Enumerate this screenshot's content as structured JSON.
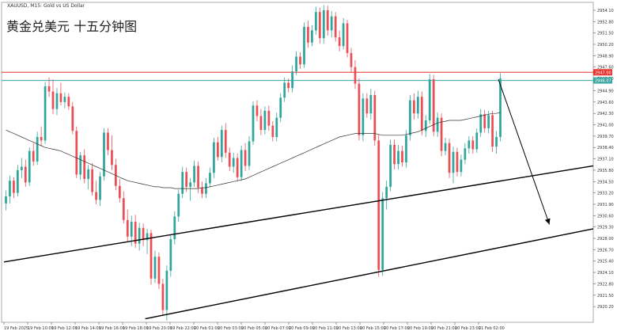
{
  "header": {
    "symbol_line": "XAUUSD, M15:  Gold vs US Dollar",
    "overlay_title": "黄金兑美元 十五分钟图"
  },
  "chart_data": {
    "type": "candlestick",
    "title": "黄金兑美元 十五分钟图",
    "ylim": [
      2918.4,
      2955.0
    ],
    "y_ticks": [
      "2954.10",
      "2952.80",
      "2951.50",
      "2950.20",
      "2948.90",
      "2947.60",
      "2946.30",
      "2944.90",
      "2943.60",
      "2942.30",
      "2941.00",
      "2939.70",
      "2938.40",
      "2937.10",
      "2935.80",
      "2934.50",
      "2933.20",
      "2931.90",
      "2930.60",
      "2929.30",
      "2928.00",
      "2926.70",
      "2925.40",
      "2924.10",
      "2922.80",
      "2921.50",
      "2920.20"
    ],
    "x_ticks": [
      "19 Feb 2025",
      "19 Feb 10:00",
      "19 Feb 12:00",
      "19 Feb 14:00",
      "19 Feb 16:00",
      "19 Feb 18:00",
      "19 Feb 20:00",
      "19 Feb 22:00",
      "20 Feb 01:00",
      "20 Feb 03:00",
      "20 Feb 05:00",
      "20 Feb 07:00",
      "20 Feb 09:00",
      "20 Feb 11:00",
      "20 Feb 13:00",
      "20 Feb 15:00",
      "20 Feb 17:00",
      "20 Feb 19:00",
      "20 Feb 21:00",
      "20 Feb 23:00",
      "21 Feb 02:00"
    ],
    "candles": [
      {
        "o": 2932.0,
        "h": 2933.5,
        "l": 2931.2,
        "c": 2932.8
      },
      {
        "o": 2932.8,
        "h": 2935.2,
        "l": 2932.0,
        "c": 2934.6
      },
      {
        "o": 2934.6,
        "h": 2935.0,
        "l": 2932.6,
        "c": 2933.2
      },
      {
        "o": 2933.2,
        "h": 2936.4,
        "l": 2932.8,
        "c": 2935.8
      },
      {
        "o": 2935.8,
        "h": 2937.2,
        "l": 2934.9,
        "c": 2936.2
      },
      {
        "o": 2936.2,
        "h": 2937.0,
        "l": 2933.9,
        "c": 2934.4
      },
      {
        "o": 2934.4,
        "h": 2938.4,
        "l": 2934.0,
        "c": 2938.0
      },
      {
        "o": 2938.0,
        "h": 2938.9,
        "l": 2936.3,
        "c": 2936.8
      },
      {
        "o": 2936.8,
        "h": 2940.2,
        "l": 2936.4,
        "c": 2939.6
      },
      {
        "o": 2939.6,
        "h": 2940.8,
        "l": 2938.6,
        "c": 2939.2
      },
      {
        "o": 2939.2,
        "h": 2945.9,
        "l": 2938.8,
        "c": 2945.4
      },
      {
        "o": 2945.4,
        "h": 2946.4,
        "l": 2944.2,
        "c": 2944.8
      },
      {
        "o": 2944.8,
        "h": 2946.2,
        "l": 2942.2,
        "c": 2942.8
      },
      {
        "o": 2942.8,
        "h": 2945.2,
        "l": 2942.1,
        "c": 2944.6
      },
      {
        "o": 2944.6,
        "h": 2945.8,
        "l": 2943.2,
        "c": 2943.6
      },
      {
        "o": 2943.6,
        "h": 2944.7,
        "l": 2942.9,
        "c": 2944.2
      },
      {
        "o": 2944.2,
        "h": 2944.6,
        "l": 2942.7,
        "c": 2943.1
      },
      {
        "o": 2943.1,
        "h": 2943.6,
        "l": 2939.9,
        "c": 2940.3
      },
      {
        "o": 2940.3,
        "h": 2940.8,
        "l": 2934.9,
        "c": 2935.3
      },
      {
        "o": 2935.3,
        "h": 2937.9,
        "l": 2934.7,
        "c": 2937.5
      },
      {
        "o": 2937.5,
        "h": 2938.2,
        "l": 2934.3,
        "c": 2934.8
      },
      {
        "o": 2934.8,
        "h": 2936.4,
        "l": 2933.6,
        "c": 2935.9
      },
      {
        "o": 2935.9,
        "h": 2936.6,
        "l": 2932.9,
        "c": 2933.3
      },
      {
        "o": 2933.3,
        "h": 2934.6,
        "l": 2931.9,
        "c": 2932.4
      },
      {
        "o": 2932.4,
        "h": 2935.6,
        "l": 2931.7,
        "c": 2935.1
      },
      {
        "o": 2935.1,
        "h": 2940.6,
        "l": 2934.6,
        "c": 2940.1
      },
      {
        "o": 2940.1,
        "h": 2940.6,
        "l": 2937.5,
        "c": 2938.1
      },
      {
        "o": 2938.1,
        "h": 2939.8,
        "l": 2935.8,
        "c": 2936.4
      },
      {
        "o": 2936.4,
        "h": 2937.1,
        "l": 2933.5,
        "c": 2934.0
      },
      {
        "o": 2934.0,
        "h": 2934.8,
        "l": 2932.1,
        "c": 2932.6
      },
      {
        "o": 2932.6,
        "h": 2933.4,
        "l": 2929.7,
        "c": 2930.1
      },
      {
        "o": 2930.1,
        "h": 2931.3,
        "l": 2927.6,
        "c": 2928.2
      },
      {
        "o": 2928.2,
        "h": 2930.6,
        "l": 2927.1,
        "c": 2929.9
      },
      {
        "o": 2929.9,
        "h": 2930.7,
        "l": 2926.9,
        "c": 2927.4
      },
      {
        "o": 2927.4,
        "h": 2929.8,
        "l": 2926.6,
        "c": 2929.2
      },
      {
        "o": 2929.2,
        "h": 2929.7,
        "l": 2927.1,
        "c": 2927.8
      },
      {
        "o": 2927.8,
        "h": 2929.1,
        "l": 2926.2,
        "c": 2928.6
      },
      {
        "o": 2928.6,
        "h": 2929.0,
        "l": 2922.7,
        "c": 2923.4
      },
      {
        "o": 2923.4,
        "h": 2926.6,
        "l": 2922.9,
        "c": 2925.9
      },
      {
        "o": 2925.9,
        "h": 2926.4,
        "l": 2922.2,
        "c": 2922.8
      },
      {
        "o": 2922.8,
        "h": 2923.4,
        "l": 2919.2,
        "c": 2919.8
      },
      {
        "o": 2919.8,
        "h": 2924.9,
        "l": 2918.6,
        "c": 2924.3
      },
      {
        "o": 2924.3,
        "h": 2928.4,
        "l": 2923.6,
        "c": 2927.9
      },
      {
        "o": 2927.9,
        "h": 2931.1,
        "l": 2927.3,
        "c": 2930.5
      },
      {
        "o": 2930.5,
        "h": 2933.6,
        "l": 2929.9,
        "c": 2933.1
      },
      {
        "o": 2933.1,
        "h": 2936.2,
        "l": 2932.6,
        "c": 2935.6
      },
      {
        "o": 2935.6,
        "h": 2936.1,
        "l": 2933.3,
        "c": 2933.9
      },
      {
        "o": 2933.9,
        "h": 2934.9,
        "l": 2932.3,
        "c": 2934.4
      },
      {
        "o": 2934.4,
        "h": 2936.9,
        "l": 2933.9,
        "c": 2936.3
      },
      {
        "o": 2936.3,
        "h": 2936.8,
        "l": 2933.2,
        "c": 2933.8
      },
      {
        "o": 2933.8,
        "h": 2934.5,
        "l": 2932.6,
        "c": 2933.1
      },
      {
        "o": 2933.1,
        "h": 2934.9,
        "l": 2932.6,
        "c": 2934.3
      },
      {
        "o": 2934.3,
        "h": 2936.1,
        "l": 2933.9,
        "c": 2935.5
      },
      {
        "o": 2935.5,
        "h": 2939.5,
        "l": 2934.9,
        "c": 2939.0
      },
      {
        "o": 2939.0,
        "h": 2939.6,
        "l": 2936.9,
        "c": 2937.3
      },
      {
        "o": 2937.3,
        "h": 2940.9,
        "l": 2936.7,
        "c": 2940.4
      },
      {
        "o": 2940.4,
        "h": 2941.2,
        "l": 2937.2,
        "c": 2937.8
      },
      {
        "o": 2937.8,
        "h": 2938.4,
        "l": 2935.7,
        "c": 2936.2
      },
      {
        "o": 2936.2,
        "h": 2937.8,
        "l": 2935.5,
        "c": 2937.2
      },
      {
        "o": 2937.2,
        "h": 2937.7,
        "l": 2934.5,
        "c": 2935.0
      },
      {
        "o": 2935.0,
        "h": 2938.6,
        "l": 2934.6,
        "c": 2938.1
      },
      {
        "o": 2938.1,
        "h": 2938.9,
        "l": 2935.7,
        "c": 2936.3
      },
      {
        "o": 2936.3,
        "h": 2939.7,
        "l": 2935.8,
        "c": 2939.1
      },
      {
        "o": 2939.1,
        "h": 2943.7,
        "l": 2938.7,
        "c": 2943.2
      },
      {
        "o": 2943.2,
        "h": 2943.8,
        "l": 2941.4,
        "c": 2942.0
      },
      {
        "o": 2942.0,
        "h": 2942.8,
        "l": 2939.8,
        "c": 2940.4
      },
      {
        "o": 2940.4,
        "h": 2943.1,
        "l": 2939.9,
        "c": 2942.6
      },
      {
        "o": 2942.6,
        "h": 2943.2,
        "l": 2940.3,
        "c": 2940.9
      },
      {
        "o": 2940.9,
        "h": 2941.4,
        "l": 2939.1,
        "c": 2939.6
      },
      {
        "o": 2939.6,
        "h": 2942.4,
        "l": 2939.1,
        "c": 2941.8
      },
      {
        "o": 2941.8,
        "h": 2944.6,
        "l": 2941.3,
        "c": 2944.1
      },
      {
        "o": 2944.1,
        "h": 2946.4,
        "l": 2943.6,
        "c": 2945.8
      },
      {
        "o": 2945.8,
        "h": 2946.3,
        "l": 2944.7,
        "c": 2945.2
      },
      {
        "o": 2945.2,
        "h": 2947.8,
        "l": 2944.7,
        "c": 2947.1
      },
      {
        "o": 2947.1,
        "h": 2949.4,
        "l": 2946.7,
        "c": 2948.8
      },
      {
        "o": 2948.8,
        "h": 2949.3,
        "l": 2947.4,
        "c": 2947.9
      },
      {
        "o": 2947.9,
        "h": 2952.7,
        "l": 2947.5,
        "c": 2952.2
      },
      {
        "o": 2952.2,
        "h": 2952.9,
        "l": 2949.8,
        "c": 2950.4
      },
      {
        "o": 2950.4,
        "h": 2952.4,
        "l": 2950.0,
        "c": 2951.8
      },
      {
        "o": 2951.8,
        "h": 2954.5,
        "l": 2951.3,
        "c": 2953.9
      },
      {
        "o": 2953.9,
        "h": 2954.4,
        "l": 2950.3,
        "c": 2950.9
      },
      {
        "o": 2950.9,
        "h": 2954.7,
        "l": 2950.3,
        "c": 2954.1
      },
      {
        "o": 2954.1,
        "h": 2954.6,
        "l": 2951.2,
        "c": 2951.8
      },
      {
        "o": 2951.8,
        "h": 2954.0,
        "l": 2951.0,
        "c": 2953.4
      },
      {
        "o": 2953.4,
        "h": 2953.9,
        "l": 2950.5,
        "c": 2951.0
      },
      {
        "o": 2951.0,
        "h": 2951.8,
        "l": 2949.4,
        "c": 2950.0
      },
      {
        "o": 2950.0,
        "h": 2953.2,
        "l": 2949.6,
        "c": 2952.6
      },
      {
        "o": 2952.6,
        "h": 2953.0,
        "l": 2948.7,
        "c": 2949.2
      },
      {
        "o": 2949.2,
        "h": 2949.8,
        "l": 2947.0,
        "c": 2947.6
      },
      {
        "o": 2947.6,
        "h": 2948.4,
        "l": 2945.1,
        "c": 2945.7
      },
      {
        "o": 2945.7,
        "h": 2946.3,
        "l": 2939.2,
        "c": 2939.8
      },
      {
        "o": 2939.8,
        "h": 2944.6,
        "l": 2939.1,
        "c": 2944.0
      },
      {
        "o": 2944.0,
        "h": 2944.6,
        "l": 2941.8,
        "c": 2942.3
      },
      {
        "o": 2942.3,
        "h": 2945.1,
        "l": 2941.6,
        "c": 2944.4
      },
      {
        "o": 2944.4,
        "h": 2944.9,
        "l": 2938.6,
        "c": 2939.2
      },
      {
        "o": 2939.2,
        "h": 2939.9,
        "l": 2923.6,
        "c": 2924.4
      },
      {
        "o": 2924.4,
        "h": 2933.3,
        "l": 2923.7,
        "c": 2932.6
      },
      {
        "o": 2932.6,
        "h": 2934.6,
        "l": 2931.3,
        "c": 2933.9
      },
      {
        "o": 2933.9,
        "h": 2939.3,
        "l": 2933.4,
        "c": 2938.7
      },
      {
        "o": 2938.7,
        "h": 2939.3,
        "l": 2935.9,
        "c": 2936.5
      },
      {
        "o": 2936.5,
        "h": 2938.7,
        "l": 2935.9,
        "c": 2938.0
      },
      {
        "o": 2938.0,
        "h": 2938.6,
        "l": 2936.2,
        "c": 2936.7
      },
      {
        "o": 2936.7,
        "h": 2940.4,
        "l": 2936.1,
        "c": 2939.8
      },
      {
        "o": 2939.8,
        "h": 2944.4,
        "l": 2939.2,
        "c": 2943.8
      },
      {
        "o": 2943.8,
        "h": 2944.6,
        "l": 2941.6,
        "c": 2942.3
      },
      {
        "o": 2942.3,
        "h": 2944.9,
        "l": 2941.7,
        "c": 2944.2
      },
      {
        "o": 2944.2,
        "h": 2944.8,
        "l": 2939.8,
        "c": 2940.3
      },
      {
        "o": 2940.3,
        "h": 2942.1,
        "l": 2939.6,
        "c": 2941.5
      },
      {
        "o": 2941.5,
        "h": 2946.8,
        "l": 2941.1,
        "c": 2946.2
      },
      {
        "o": 2946.2,
        "h": 2946.7,
        "l": 2939.7,
        "c": 2940.2
      },
      {
        "o": 2940.2,
        "h": 2942.4,
        "l": 2939.6,
        "c": 2941.8
      },
      {
        "o": 2941.8,
        "h": 2942.3,
        "l": 2937.4,
        "c": 2938.0
      },
      {
        "o": 2938.0,
        "h": 2939.5,
        "l": 2937.5,
        "c": 2938.9
      },
      {
        "o": 2938.9,
        "h": 2939.4,
        "l": 2934.9,
        "c": 2935.5
      },
      {
        "o": 2935.5,
        "h": 2938.5,
        "l": 2934.3,
        "c": 2937.9
      },
      {
        "o": 2937.9,
        "h": 2938.4,
        "l": 2935.1,
        "c": 2935.6
      },
      {
        "o": 2935.6,
        "h": 2937.6,
        "l": 2935.1,
        "c": 2937.0
      },
      {
        "o": 2937.0,
        "h": 2938.9,
        "l": 2936.5,
        "c": 2938.3
      },
      {
        "o": 2938.3,
        "h": 2939.7,
        "l": 2937.7,
        "c": 2939.2
      },
      {
        "o": 2939.2,
        "h": 2939.7,
        "l": 2937.7,
        "c": 2938.2
      },
      {
        "o": 2938.2,
        "h": 2940.6,
        "l": 2937.8,
        "c": 2940.1
      },
      {
        "o": 2940.1,
        "h": 2942.8,
        "l": 2939.6,
        "c": 2942.2
      },
      {
        "o": 2942.2,
        "h": 2942.7,
        "l": 2940.1,
        "c": 2940.6
      },
      {
        "o": 2940.6,
        "h": 2942.6,
        "l": 2940.0,
        "c": 2942.1
      },
      {
        "o": 2942.1,
        "h": 2942.6,
        "l": 2937.9,
        "c": 2938.5
      },
      {
        "o": 2938.5,
        "h": 2940.3,
        "l": 2937.7,
        "c": 2939.6
      },
      {
        "o": 2939.6,
        "h": 2946.9,
        "l": 2939.1,
        "c": 2946.3
      }
    ],
    "moving_average": [
      2940.4,
      2940.2,
      2940.0,
      2939.8,
      2939.6,
      2939.4,
      2939.2,
      2939.0,
      2938.8,
      2938.6,
      2938.4,
      2938.3,
      2938.2,
      2938.1,
      2938.0,
      2937.8,
      2937.6,
      2937.4,
      2937.2,
      2937.0,
      2936.8,
      2936.6,
      2936.4,
      2936.2,
      2936.0,
      2935.8,
      2935.6,
      2935.4,
      2935.2,
      2935.0,
      2934.8,
      2934.6,
      2934.5,
      2934.4,
      2934.3,
      2934.2,
      2934.1,
      2934.0,
      2933.9,
      2933.9,
      2933.8,
      2933.8,
      2933.8,
      2933.7,
      2933.7,
      2933.7,
      2933.7,
      2933.7,
      2933.7,
      2933.7,
      2933.8,
      2933.8,
      2933.9,
      2934.0,
      2934.1,
      2934.2,
      2934.3,
      2934.4,
      2934.5,
      2934.6,
      2934.7,
      2934.8,
      2935.0,
      2935.2,
      2935.4,
      2935.6,
      2935.8,
      2936.0,
      2936.2,
      2936.4,
      2936.6,
      2936.8,
      2937.0,
      2937.2,
      2937.4,
      2937.6,
      2937.8,
      2938.0,
      2938.2,
      2938.4,
      2938.6,
      2938.8,
      2939.0,
      2939.2,
      2939.4,
      2939.6,
      2939.7,
      2939.8,
      2939.9,
      2940.0,
      2940.0,
      2940.0,
      2940.0,
      2940.0,
      2940.0,
      2939.9,
      2939.8,
      2939.8,
      2939.8,
      2939.8,
      2939.8,
      2939.8,
      2939.9,
      2940.0,
      2940.1,
      2940.2,
      2940.4,
      2940.6,
      2940.8,
      2941.0,
      2941.2,
      2941.3,
      2941.4,
      2941.5,
      2941.5,
      2941.5,
      2941.5,
      2941.6,
      2941.7,
      2941.8,
      2941.9,
      2942.0,
      2942.1,
      2942.2,
      2942.3,
      2942.3,
      2942.4
    ],
    "price_levels": [
      {
        "label": "2947.00",
        "value": 2947.0,
        "color": "#e8312f"
      },
      {
        "label": "2946.07",
        "value": 2946.07,
        "color": "#3aa6a2"
      }
    ],
    "trendlines": [
      {
        "x0": 0,
        "y0": 2925.3,
        "x1": 126,
        "y1": 2936.3
      },
      {
        "x0": 36,
        "y0": 2918.8,
        "x1": 126,
        "y1": 2929.1
      }
    ],
    "arrow": {
      "x0": 126,
      "y0": 2946.2,
      "x1": 139,
      "y1": 2929.6
    },
    "grid": false,
    "colors": {
      "up": "#2fa59b",
      "down": "#eb4f55",
      "ma": "#333333",
      "trend": "#000000"
    }
  }
}
